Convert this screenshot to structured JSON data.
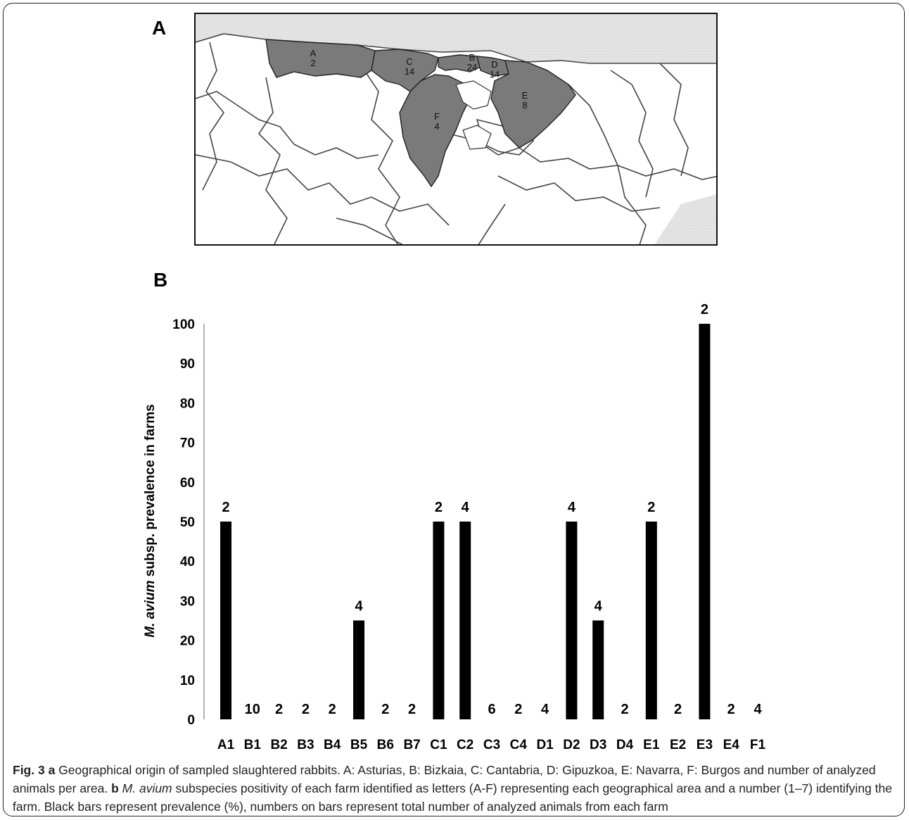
{
  "panels": {
    "a_label": "A",
    "b_label": "B"
  },
  "map": {
    "regions": [
      {
        "letter": "A",
        "count": "2",
        "shaded": true
      },
      {
        "letter": "C",
        "count": "14",
        "shaded": true
      },
      {
        "letter": "B",
        "count": "24",
        "shaded": true
      },
      {
        "letter": "D",
        "count": "14",
        "shaded": true
      },
      {
        "letter": "E",
        "count": "8",
        "shaded": true
      },
      {
        "letter": "F",
        "count": "4",
        "shaded": true
      }
    ],
    "colors": {
      "shaded": "#7a7a7a",
      "sea": "#e2e2e2",
      "land": "#ffffff",
      "border": "#333333"
    }
  },
  "chart_data": {
    "type": "bar",
    "title": "",
    "ylabel_italic": "M. avium",
    "ylabel_rest": " subsp. prevalence in farms",
    "xlabel": "",
    "ylim": [
      0,
      100
    ],
    "yticks": [
      "0",
      "10",
      "20",
      "30",
      "40",
      "50",
      "60",
      "70",
      "80",
      "90",
      "100"
    ],
    "categories": [
      "A1",
      "B1",
      "B2",
      "B3",
      "B4",
      "B5",
      "B6",
      "B7",
      "C1",
      "C2",
      "C3",
      "C4",
      "D1",
      "D2",
      "D3",
      "D4",
      "E1",
      "E2",
      "E3",
      "E4",
      "F1"
    ],
    "values": [
      50,
      0,
      0,
      0,
      0,
      25,
      0,
      0,
      50,
      50,
      0,
      0,
      0,
      50,
      25,
      0,
      50,
      0,
      100,
      0,
      0
    ],
    "bar_labels": [
      "2",
      "10",
      "2",
      "2",
      "2",
      "4",
      "2",
      "2",
      "2",
      "4",
      "6",
      "2",
      "4",
      "4",
      "4",
      "2",
      "2",
      "2",
      "2",
      "2",
      "4"
    ],
    "bar_color": "#000000",
    "grid": false,
    "legend": "none"
  },
  "caption": {
    "fig": "Fig. 3",
    "a_bold": "a",
    "a_text": " Geographical origin of sampled slaughtered rabbits. A: Asturias, B: Bizkaia, C: Cantabria, D: Gipuzkoa, E: Navarra, F: Burgos and number of analyzed animals per area. ",
    "b_bold": "b",
    "b_italic": "M. avium",
    "b_text": " subspecies positivity of each farm identified as letters (A-F) representing each geographical area and a number (1–7) identifying the farm. Black bars represent prevalence (%), numbers on bars represent total number of analyzed animals from each farm"
  }
}
